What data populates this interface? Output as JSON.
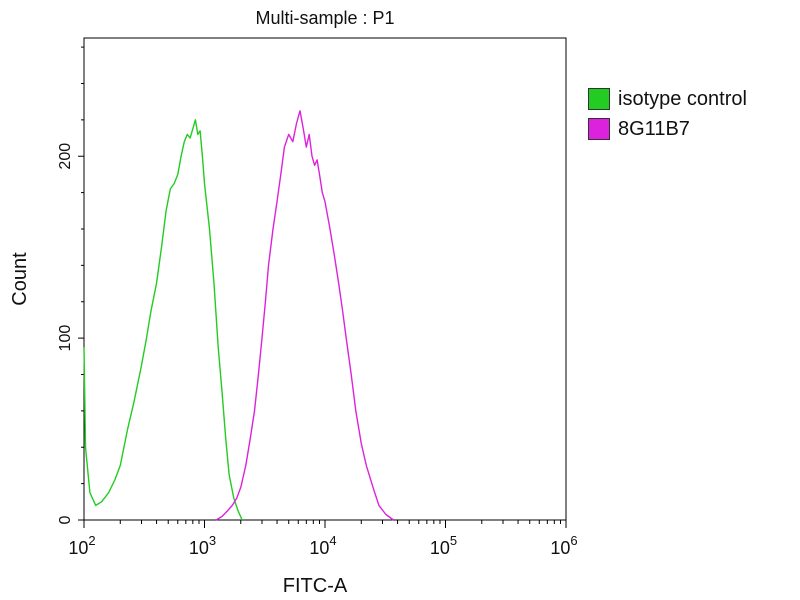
{
  "chart_data": {
    "type": "line",
    "title": "Multi-sample : P1",
    "xlabel": "FITC-A",
    "ylabel": "Count",
    "xscale": "log",
    "xlim": [
      100,
      1000000
    ],
    "ylim": [
      0,
      265
    ],
    "x_ticks": [
      {
        "base": "10",
        "exp": "2",
        "value": 100
      },
      {
        "base": "10",
        "exp": "3",
        "value": 1000
      },
      {
        "base": "10",
        "exp": "4",
        "value": 10000
      },
      {
        "base": "10",
        "exp": "5",
        "value": 100000
      },
      {
        "base": "10",
        "exp": "6",
        "value": 1000000
      }
    ],
    "y_ticks": [
      {
        "label": "0",
        "value": 0
      },
      {
        "label": "100",
        "value": 100
      },
      {
        "label": "200",
        "value": 200
      }
    ],
    "grid": false,
    "legend_position": "right",
    "series": [
      {
        "name": "isotype control",
        "color": "#22cc22",
        "points": [
          [
            100,
            95
          ],
          [
            103,
            40
          ],
          [
            112,
            15
          ],
          [
            125,
            8
          ],
          [
            140,
            10
          ],
          [
            160,
            15
          ],
          [
            180,
            22
          ],
          [
            200,
            30
          ],
          [
            230,
            50
          ],
          [
            260,
            65
          ],
          [
            300,
            85
          ],
          [
            330,
            100
          ],
          [
            360,
            115
          ],
          [
            400,
            130
          ],
          [
            440,
            150
          ],
          [
            480,
            170
          ],
          [
            520,
            182
          ],
          [
            560,
            185
          ],
          [
            600,
            190
          ],
          [
            640,
            200
          ],
          [
            680,
            208
          ],
          [
            720,
            212
          ],
          [
            760,
            210
          ],
          [
            800,
            215
          ],
          [
            840,
            220
          ],
          [
            880,
            212
          ],
          [
            920,
            214
          ],
          [
            960,
            200
          ],
          [
            1000,
            185
          ],
          [
            1100,
            160
          ],
          [
            1200,
            130
          ],
          [
            1300,
            95
          ],
          [
            1400,
            70
          ],
          [
            1500,
            45
          ],
          [
            1600,
            25
          ],
          [
            1750,
            12
          ],
          [
            1900,
            5
          ],
          [
            2050,
            0
          ]
        ]
      },
      {
        "name": "8G11B7",
        "color": "#dd22dd",
        "points": [
          [
            1250,
            0
          ],
          [
            1400,
            2
          ],
          [
            1550,
            5
          ],
          [
            1700,
            8
          ],
          [
            1850,
            12
          ],
          [
            2000,
            18
          ],
          [
            2200,
            30
          ],
          [
            2400,
            45
          ],
          [
            2600,
            60
          ],
          [
            2800,
            80
          ],
          [
            3000,
            100
          ],
          [
            3200,
            120
          ],
          [
            3400,
            140
          ],
          [
            3700,
            160
          ],
          [
            4000,
            175
          ],
          [
            4300,
            190
          ],
          [
            4600,
            205
          ],
          [
            5000,
            212
          ],
          [
            5400,
            208
          ],
          [
            5800,
            218
          ],
          [
            6200,
            225
          ],
          [
            6600,
            215
          ],
          [
            7000,
            205
          ],
          [
            7400,
            212
          ],
          [
            7800,
            200
          ],
          [
            8200,
            195
          ],
          [
            8600,
            198
          ],
          [
            9000,
            190
          ],
          [
            9500,
            180
          ],
          [
            10000,
            175
          ],
          [
            11000,
            160
          ],
          [
            12000,
            145
          ],
          [
            13000,
            130
          ],
          [
            14000,
            115
          ],
          [
            15000,
            100
          ],
          [
            16500,
            80
          ],
          [
            18000,
            60
          ],
          [
            20000,
            42
          ],
          [
            22000,
            30
          ],
          [
            25000,
            18
          ],
          [
            28000,
            8
          ],
          [
            32000,
            3
          ],
          [
            37000,
            0
          ]
        ]
      }
    ]
  },
  "legend": [
    {
      "label": "isotype control",
      "color": "#22cc22"
    },
    {
      "label": "8G11B7",
      "color": "#dd22dd"
    }
  ]
}
